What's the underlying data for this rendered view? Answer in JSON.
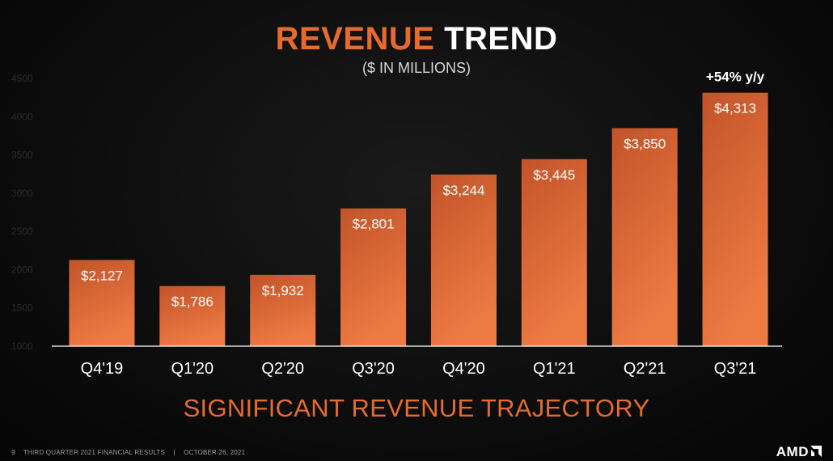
{
  "title": {
    "part1": "REVENUE",
    "part2": "TREND"
  },
  "subtitle": "($ IN MILLIONS)",
  "tagline": "SIGNIFICANT REVENUE TRAJECTORY",
  "footer": {
    "page": "9",
    "deck": "THIRD QUARTER 2021 FINANCIAL RESULTS",
    "sep": "|",
    "date": "OCTOBER 26, 2021"
  },
  "logo": "AMD",
  "colors": {
    "accent": "#e66b2e",
    "bar_top": "#c2542a",
    "bar_bottom": "#ee7a43",
    "axis_tick": "#2a2a2a"
  },
  "chart_data": {
    "type": "bar",
    "categories": [
      "Q4'19",
      "Q1'20",
      "Q2'20",
      "Q3'20",
      "Q4'20",
      "Q1'21",
      "Q2'21",
      "Q3'21"
    ],
    "values": [
      2127,
      1786,
      1932,
      2801,
      3244,
      3445,
      3850,
      4313
    ],
    "value_labels": [
      "$2,127",
      "$1,786",
      "$1,932",
      "$2,801",
      "$3,244",
      "$3,445",
      "$3,850",
      "$4,313"
    ],
    "ylim": [
      1000,
      4500
    ],
    "yticks": [
      1000,
      1500,
      2000,
      2500,
      3000,
      3500,
      4000,
      4500
    ],
    "annotation": {
      "category": "Q3'21",
      "text": "+54% y/y"
    },
    "grid": false
  }
}
